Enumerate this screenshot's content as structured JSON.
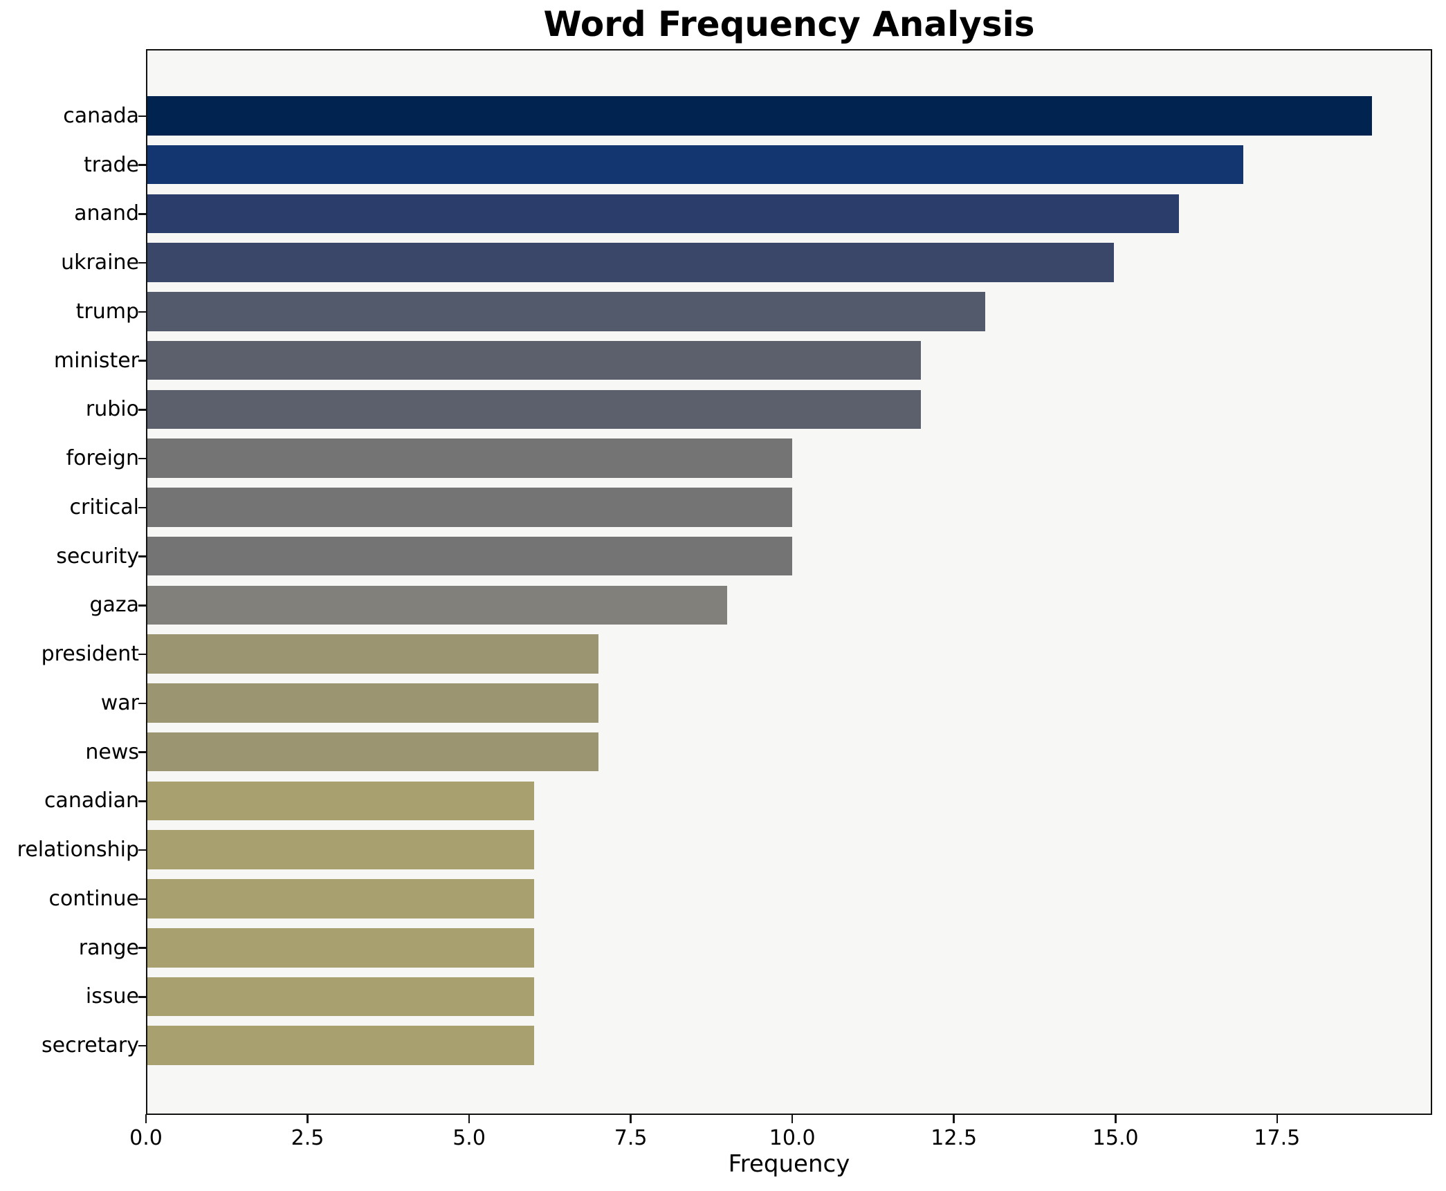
{
  "chart_data": {
    "type": "bar",
    "orientation": "horizontal",
    "title": "Word Frequency Analysis",
    "xlabel": "Frequency",
    "ylabel": "",
    "categories": [
      "canada",
      "trade",
      "anand",
      "ukraine",
      "trump",
      "minister",
      "rubio",
      "foreign",
      "critical",
      "security",
      "gaza",
      "president",
      "war",
      "news",
      "canadian",
      "relationship",
      "continue",
      "range",
      "issue",
      "secretary"
    ],
    "values": [
      19,
      17,
      16,
      15,
      13,
      12,
      12,
      10,
      10,
      10,
      9,
      7,
      7,
      7,
      6,
      6,
      6,
      6,
      6,
      6
    ],
    "bar_colors": [
      "#00234f",
      "#133670",
      "#2b3e6b",
      "#3a4769",
      "#535a6c",
      "#5c606d",
      "#5c606d",
      "#747474",
      "#747474",
      "#747474",
      "#81807a",
      "#9b9571",
      "#9b9571",
      "#9b9571",
      "#a9a06f",
      "#a9a06f",
      "#a9a06f",
      "#a9a06f",
      "#a9a06f",
      "#a9a06f"
    ],
    "xtick_labels": [
      "0.0",
      "2.5",
      "5.0",
      "7.5",
      "10.0",
      "12.5",
      "15.0",
      "17.5"
    ],
    "xtick_values": [
      0,
      2.5,
      5,
      7.5,
      10,
      12.5,
      15,
      17.5
    ],
    "xlim": [
      0,
      19.9
    ],
    "grid": false,
    "legend": null
  },
  "colors": {
    "figure_background": "#ffffff",
    "plot_background": "#f7f7f5",
    "spine": "#111111",
    "text": "#000000"
  }
}
